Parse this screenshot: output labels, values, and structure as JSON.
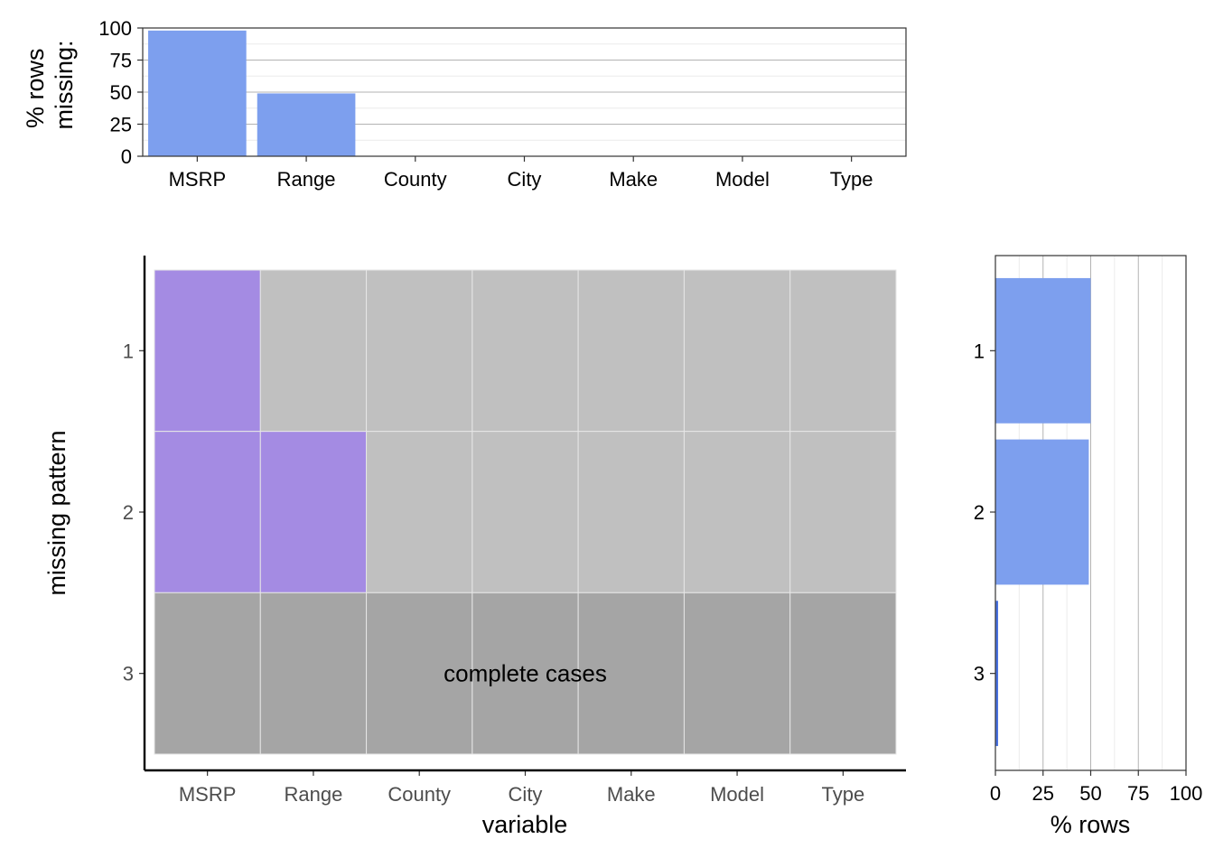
{
  "chart_data": [
    {
      "type": "bar",
      "panel": "top",
      "categories": [
        "MSRP",
        "Range",
        "County",
        "City",
        "Make",
        "Model",
        "Type"
      ],
      "values": [
        98,
        49,
        0,
        0,
        0,
        0,
        0
      ],
      "ylabel": "% rows\nmissing:",
      "ylabel_lines": [
        "% rows",
        "missing:"
      ],
      "ylim": [
        0,
        100
      ],
      "yticks": [
        "0",
        "25",
        "50",
        "75",
        "100"
      ],
      "grid": true,
      "color": "#7d9fee"
    },
    {
      "type": "heatmap",
      "panel": "main",
      "columns": [
        "MSRP",
        "Range",
        "County",
        "City",
        "Make",
        "Model",
        "Type"
      ],
      "rows": [
        "1",
        "2",
        "3"
      ],
      "missing": [
        [
          1,
          0,
          0,
          0,
          0,
          0,
          0
        ],
        [
          1,
          1,
          0,
          0,
          0,
          0,
          0
        ],
        [
          0,
          0,
          0,
          0,
          0,
          0,
          0
        ]
      ],
      "complete_row": "3",
      "annotation": "complete cases",
      "xlabel": "variable",
      "ylabel": "missing pattern",
      "colors": {
        "missing": "#a48be3",
        "present": "#c0c0c0",
        "complete": "#a5a5a5",
        "cell_border": "#e6e6e6"
      }
    },
    {
      "type": "bar",
      "panel": "right",
      "orientation": "horizontal",
      "categories": [
        "1",
        "2",
        "3"
      ],
      "values": [
        50,
        49,
        1
      ],
      "xlabel": "% rows",
      "xlim": [
        0,
        100
      ],
      "xticks": [
        "0",
        "25",
        "50",
        "75",
        "100"
      ],
      "grid": true,
      "color": "#7d9fee",
      "highlight_color": "#4a72e0"
    }
  ]
}
